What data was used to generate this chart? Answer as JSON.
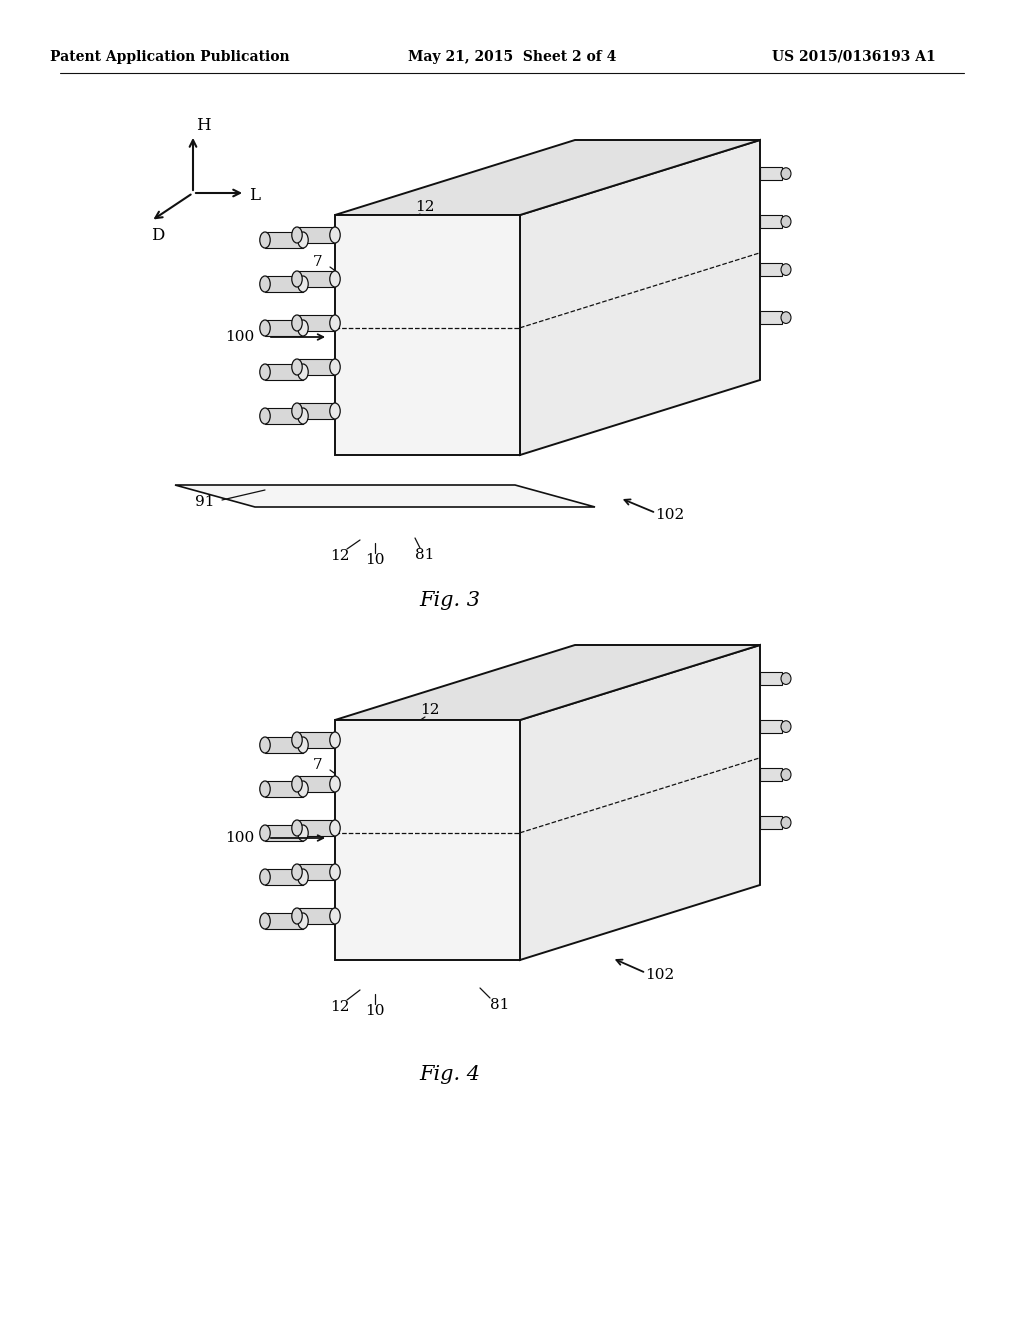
{
  "bg_color": "#ffffff",
  "lc": "#111111",
  "header_left": "Patent Application Publication",
  "header_center": "May 21, 2015  Sheet 2 of 4",
  "header_right": "US 2015/0136193 A1",
  "fig3_label": "Fig. 3",
  "fig4_label": "Fig. 4",
  "face_front": "#f4f4f4",
  "face_top": "#e2e2e2",
  "face_right": "#ebebeb",
  "bolt_fc": "#d8d8d8",
  "bolt_ec": "#444444"
}
